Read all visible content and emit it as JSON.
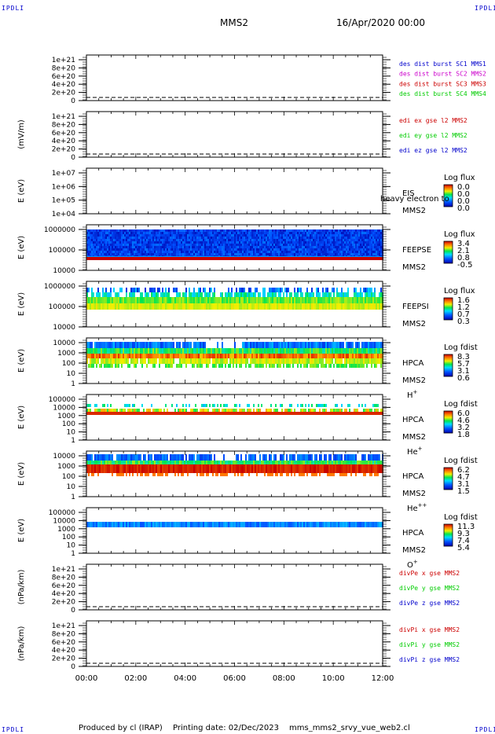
{
  "header": {
    "corner_labels": [
      "IPDLI",
      "IPDLI",
      "IPDLI",
      "IPDLI"
    ],
    "spacecraft": "MMS2",
    "datetime": "16/Apr/2020 00:00"
  },
  "footer": {
    "produced_by": "Produced by cl (IRAP)",
    "printing_date": "Printing date: 02/Dec/2023",
    "filename": "mms_mms2_srvy_vue_web2.cl"
  },
  "colors": {
    "blue": "#0000cc",
    "magenta": "#cc00cc",
    "red": "#cc0000",
    "green": "#00cc00",
    "cyan": "#00aacc"
  },
  "chart_data": [
    {
      "type": "line",
      "id": "p1",
      "ylabel": "",
      "yticks": [
        "1e+21",
        "8e+20",
        "6e+20",
        "4e+20",
        "2e+20",
        "0"
      ],
      "legend": [
        {
          "text": "des dist burst SC1 MMS1",
          "color": "#0000cc"
        },
        {
          "text": "des dist burst SC2 MMS2",
          "color": "#cc00cc"
        },
        {
          "text": "des dist burst SC3 MMS3",
          "color": "#cc0000"
        },
        {
          "text": "des dist burst SC4 MMS4",
          "color": "#00cc00"
        }
      ]
    },
    {
      "type": "line",
      "id": "p2",
      "ylabel": "(mV/m)",
      "yticks": [
        "1e+21",
        "8e+20",
        "6e+20",
        "4e+20",
        "2e+20",
        "0"
      ],
      "legend": [
        {
          "text": "edi ex gse l2 MMS2",
          "color": "#cc0000"
        },
        {
          "text": "edi ey gse l2 MMS2",
          "color": "#00cc00"
        },
        {
          "text": "edi ez gse l2 MMS2",
          "color": "#0000cc"
        }
      ]
    },
    {
      "type": "heatmap",
      "id": "p3",
      "ylabel": "E (eV)",
      "yticks": [
        "1e+07",
        "1e+06",
        "1e+05",
        "1e+04"
      ],
      "right_labels": [
        "EIS",
        "MMS2"
      ],
      "overlay_text": "heavy electron to",
      "colorbar_title": "Log flux",
      "colorbar_ticks": [
        "0.0",
        "0.0",
        "0.0",
        "0.0"
      ]
    },
    {
      "type": "heatmap",
      "id": "p4",
      "ylabel": "E (eV)",
      "yticks": [
        "1000000",
        "100000",
        "10000"
      ],
      "right_labels": [
        "FEEPSE",
        "MMS2"
      ],
      "colorbar_title": "Log flux",
      "colorbar_ticks": [
        "3.4",
        "2.1",
        "0.8",
        "-0.5"
      ]
    },
    {
      "type": "heatmap",
      "id": "p5",
      "ylabel": "E (eV)",
      "yticks": [
        "1000000",
        "100000",
        "10000"
      ],
      "right_labels": [
        "FEEPSI",
        "MMS2"
      ],
      "colorbar_title": "Log flux",
      "colorbar_ticks": [
        "1.6",
        "1.2",
        "0.7",
        "0.3"
      ]
    },
    {
      "type": "heatmap",
      "id": "p6",
      "ylabel": "E (eV)",
      "yticks": [
        "10000",
        "1000",
        "100",
        "10",
        "1"
      ],
      "right_labels": [
        "HPCA",
        "MMS2"
      ],
      "species": "H",
      "species_sup": "+",
      "colorbar_title": "Log fdist",
      "colorbar_ticks": [
        "8.3",
        "5.7",
        "3.1",
        "0.6"
      ]
    },
    {
      "type": "heatmap",
      "id": "p7",
      "ylabel": "E (eV)",
      "yticks": [
        "100000",
        "10000",
        "1000",
        "100",
        "10",
        "1"
      ],
      "right_labels": [
        "HPCA",
        "MMS2"
      ],
      "species": "He",
      "species_sup": "+",
      "colorbar_title": "Log fdist",
      "colorbar_ticks": [
        "6.0",
        "4.6",
        "3.2",
        "1.8"
      ]
    },
    {
      "type": "heatmap",
      "id": "p8",
      "ylabel": "E (eV)",
      "yticks": [
        "10000",
        "1000",
        "100",
        "10",
        "1"
      ],
      "right_labels": [
        "HPCA",
        "MMS2"
      ],
      "species": "He",
      "species_sup": "++",
      "colorbar_title": "Log fdist",
      "colorbar_ticks": [
        "6.2",
        "4.7",
        "3.1",
        "1.5"
      ]
    },
    {
      "type": "heatmap",
      "id": "p9",
      "ylabel": "E (eV)",
      "yticks": [
        "100000",
        "10000",
        "1000",
        "100",
        "10",
        "1"
      ],
      "right_labels": [
        "HPCA",
        "MMS2"
      ],
      "species": "O",
      "species_sup": "+",
      "colorbar_title": "Log fdist",
      "colorbar_ticks": [
        "11.3",
        "9.3",
        "7.4",
        "5.4"
      ]
    },
    {
      "type": "line",
      "id": "p10",
      "ylabel": "(nPa/km)",
      "yticks": [
        "1e+21",
        "8e+20",
        "6e+20",
        "4e+20",
        "2e+20",
        "0"
      ],
      "legend": [
        {
          "text": "divPe x gse MMS2",
          "color": "#cc0000"
        },
        {
          "text": "divPe y gse MMS2",
          "color": "#00cc00"
        },
        {
          "text": "divPe z gse MMS2",
          "color": "#0000cc"
        }
      ]
    },
    {
      "type": "line",
      "id": "p11",
      "ylabel": "(nPa/km)",
      "yticks": [
        "1e+21",
        "8e+20",
        "6e+20",
        "4e+20",
        "2e+20",
        "0"
      ],
      "legend": [
        {
          "text": "divPi x gse MMS2",
          "color": "#cc0000"
        },
        {
          "text": "divPi y gse MMS2",
          "color": "#00cc00"
        },
        {
          "text": "divPi z gse MMS2",
          "color": "#0000cc"
        }
      ]
    }
  ],
  "time_axis": {
    "ticks": [
      "00:00",
      "02:00",
      "04:00",
      "06:00",
      "08:00",
      "10:00",
      "12:00"
    ]
  }
}
